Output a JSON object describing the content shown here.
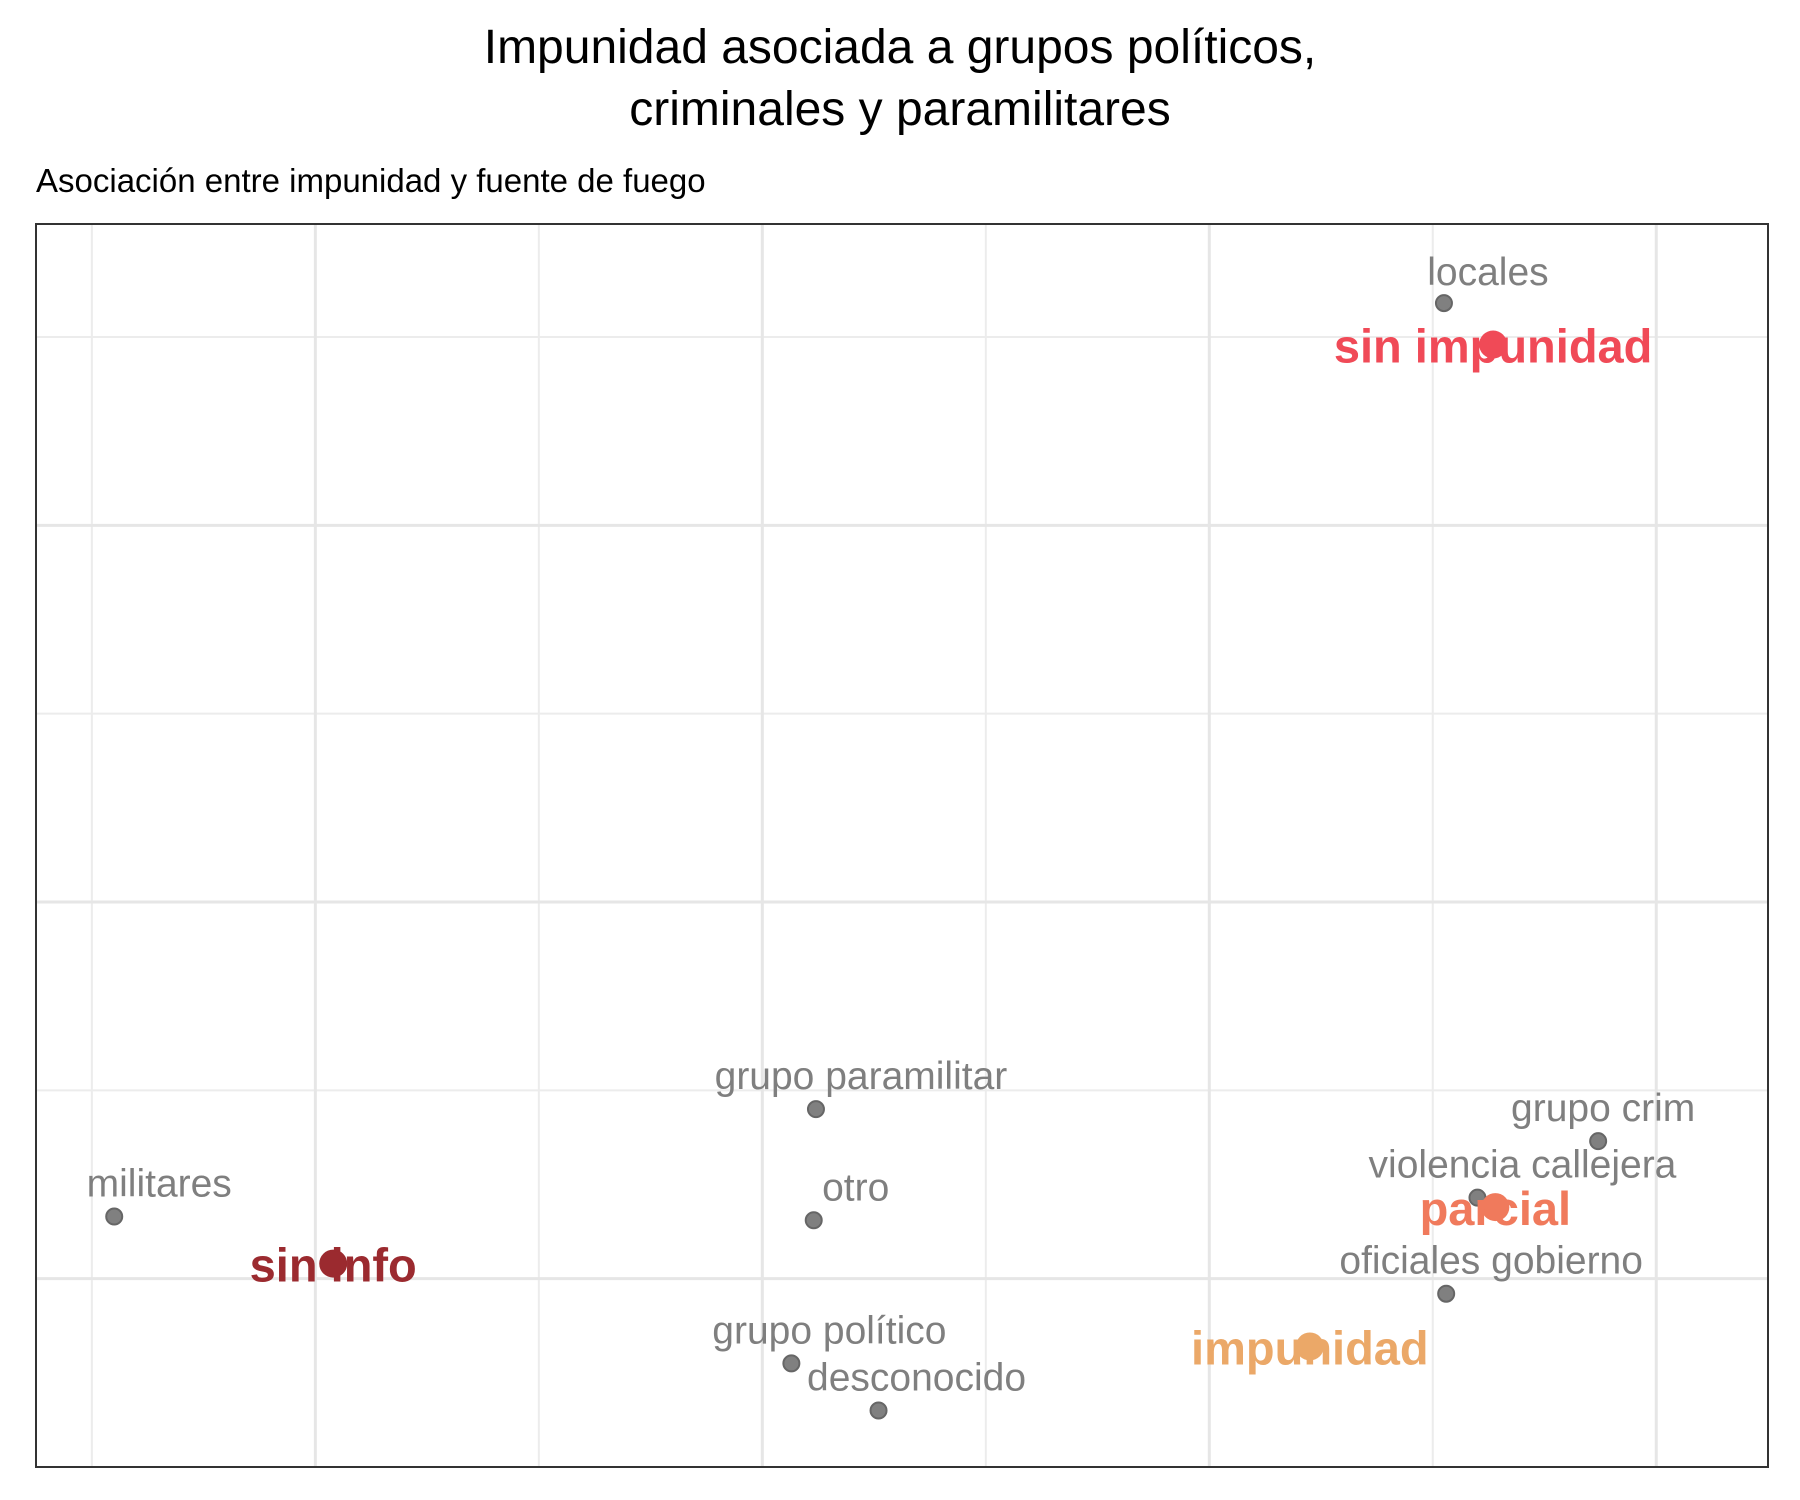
{
  "title_lines": [
    "Impunidad asociada a grupos políticos,",
    "criminales y paramilitares"
  ],
  "subtitle": "Asociación entre impunidad y fuente de fuego",
  "chart_data": {
    "type": "scatter",
    "title": "Impunidad asociada a grupos políticos, criminales y paramilitares",
    "subtitle": "Asociación entre impunidad y fuente de fuego",
    "xlabel": "",
    "ylabel": "",
    "xlim": [
      -3.25,
      4.5
    ],
    "ylim": [
      -1.0,
      5.6
    ],
    "x_major_ticks": [
      -2,
      0,
      2,
      4
    ],
    "x_minor_ticks": [
      -3,
      -1,
      1,
      3
    ],
    "y_major_ticks": [
      0,
      2,
      4
    ],
    "y_minor_ticks": [
      1,
      3,
      5
    ],
    "grid": true,
    "legend": "none",
    "series": [
      {
        "name": "fuente de fuego",
        "color": "#808080",
        "points": [
          {
            "label": "locales",
            "x": 3.05,
            "y": 5.18
          },
          {
            "label": "militares",
            "x": -2.9,
            "y": 0.33
          },
          {
            "label": "grupo paramilitar",
            "x": 0.24,
            "y": 0.9
          },
          {
            "label": "otro",
            "x": 0.23,
            "y": 0.31
          },
          {
            "label": "grupo crim",
            "x": 3.74,
            "y": 0.73
          },
          {
            "label": "violencia callejera",
            "x": 3.2,
            "y": 0.43
          },
          {
            "label": "oficiales gobierno",
            "x": 3.06,
            "y": -0.08
          },
          {
            "label": "grupo político",
            "x": 0.13,
            "y": -0.45
          },
          {
            "label": "desconocido",
            "x": 0.52,
            "y": -0.7
          }
        ]
      },
      {
        "name": "impunidad",
        "points": [
          {
            "label": "sin impunidad",
            "x": 3.27,
            "y": 4.96,
            "color": "#f04a57"
          },
          {
            "label": "sin info",
            "x": -1.92,
            "y": 0.08,
            "color": "#9b2a2f"
          },
          {
            "label": "parcial",
            "x": 3.28,
            "y": 0.38,
            "color": "#f07a5c"
          },
          {
            "label": "impunidad",
            "x": 2.45,
            "y": -0.36,
            "color": "#eba868"
          }
        ]
      }
    ]
  }
}
